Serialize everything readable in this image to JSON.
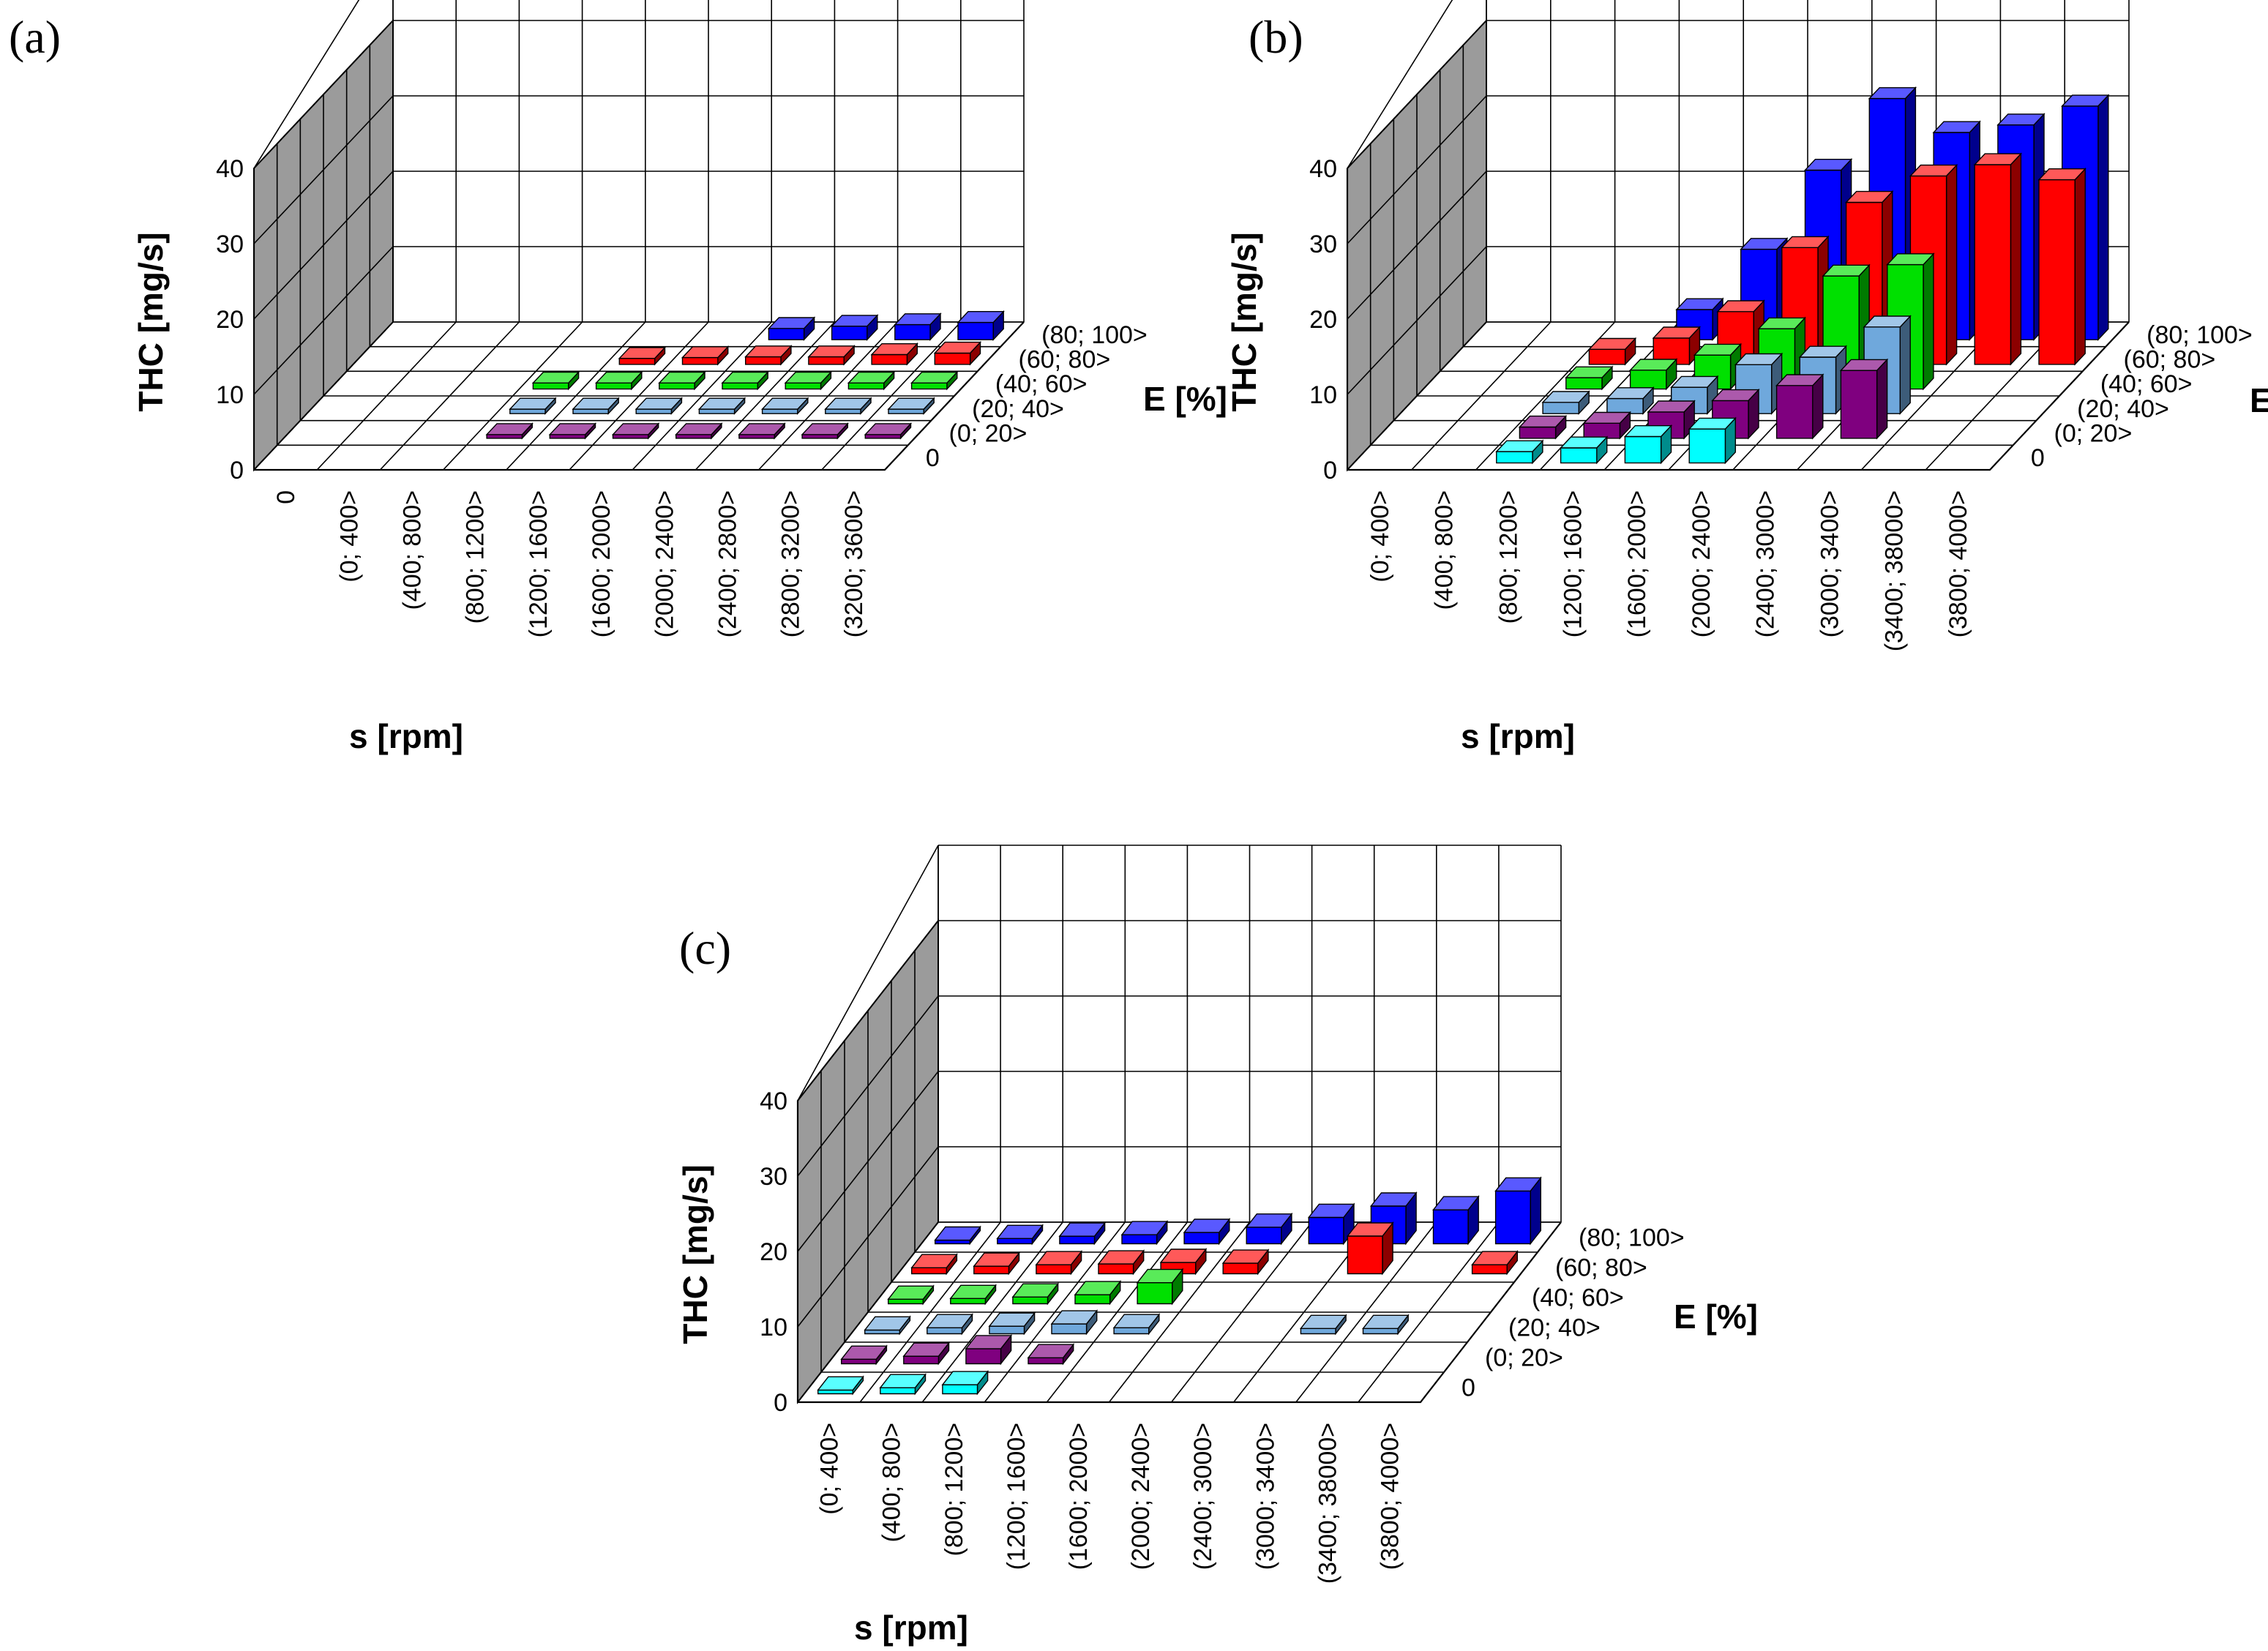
{
  "chart_data": [
    {
      "type": "bar3d",
      "panel_label": "(a)",
      "ylabel": "THC [mg/s]",
      "xlabel": "s [rpm]",
      "zlabel": "E [%]",
      "ylim": [
        0,
        40
      ],
      "yticks": [
        "0",
        "10",
        "20",
        "30",
        "40"
      ],
      "x_categories": [
        "0",
        "(0; 400>",
        "(400; 800>",
        "(800; 1200>",
        "(1200; 1600>",
        "(1600; 2000>",
        "(2000; 2400>",
        "(2400; 2800>",
        "(2800; 3200>",
        "(3200; 3600>"
      ],
      "z_categories": [
        "0",
        "(0; 20>",
        "(20; 40>",
        "(40; 60>",
        "(60; 80>",
        "(80; 100>"
      ],
      "series": [
        {
          "name": "0",
          "color": "#00ffff",
          "values": [
            null,
            null,
            null,
            null,
            null,
            null,
            null,
            null,
            null,
            null
          ]
        },
        {
          "name": "(0; 20>",
          "color": "#7f007f",
          "values": [
            null,
            null,
            null,
            0.5,
            0.5,
            0.5,
            0.5,
            0.5,
            0.5,
            0.5
          ]
        },
        {
          "name": "(20; 40>",
          "color": "#6fa8dc",
          "values": [
            null,
            null,
            null,
            0.6,
            0.6,
            0.6,
            0.6,
            0.6,
            0.6,
            0.6
          ]
        },
        {
          "name": "(40; 60>",
          "color": "#00e000",
          "values": [
            null,
            null,
            null,
            0.8,
            0.8,
            0.8,
            0.8,
            0.8,
            0.8,
            0.8
          ]
        },
        {
          "name": "(60; 80>",
          "color": "#ff0000",
          "values": [
            null,
            null,
            null,
            null,
            0.8,
            0.9,
            1.0,
            1.0,
            1.3,
            1.5
          ]
        },
        {
          "name": "(80; 100>",
          "color": "#0000ff",
          "values": [
            null,
            null,
            null,
            null,
            null,
            null,
            1.5,
            1.8,
            2.0,
            2.3
          ]
        }
      ]
    },
    {
      "type": "bar3d",
      "panel_label": "(b)",
      "ylabel": "THC [mg/s]",
      "xlabel": "s [rpm]",
      "zlabel": "E [%]",
      "ylim": [
        0,
        40
      ],
      "yticks": [
        "0",
        "10",
        "20",
        "30",
        "40"
      ],
      "x_categories": [
        "(0; 400>",
        "(400; 800>",
        "(800; 1200>",
        "(1200; 1600>",
        "(1600; 2000>",
        "(2000; 2400>",
        "(2400; 3000>",
        "(3000; 3400>",
        "(3400; 38000>",
        "(3800; 4000>"
      ],
      "z_categories": [
        "0",
        "(0; 20>",
        "(20; 40>",
        "(40; 60>",
        "(60; 80>",
        "(80; 100>"
      ],
      "series": [
        {
          "name": "0",
          "color": "#00ffff",
          "values": [
            null,
            null,
            1.5,
            2.0,
            3.5,
            4.5,
            null,
            null,
            null,
            null
          ]
        },
        {
          "name": "(0; 20>",
          "color": "#7f007f",
          "values": [
            null,
            null,
            1.5,
            2.0,
            3.5,
            5.0,
            7.0,
            9.0,
            null,
            null
          ]
        },
        {
          "name": "(20; 40>",
          "color": "#6fa8dc",
          "values": [
            null,
            null,
            1.5,
            2.0,
            3.5,
            6.5,
            7.5,
            11.5,
            null,
            null
          ]
        },
        {
          "name": "(40; 60>",
          "color": "#00e000",
          "values": [
            null,
            null,
            1.5,
            2.5,
            4.5,
            8.0,
            15.0,
            16.5,
            null,
            null
          ]
        },
        {
          "name": "(60; 80>",
          "color": "#ff0000",
          "values": [
            null,
            null,
            2.0,
            3.5,
            7.0,
            15.5,
            21.5,
            25.0,
            26.5,
            24.5
          ]
        },
        {
          "name": "(80; 100>",
          "color": "#0000ff",
          "values": [
            null,
            null,
            null,
            4.0,
            12.0,
            22.5,
            32.0,
            27.5,
            28.5,
            31.0
          ]
        }
      ]
    },
    {
      "type": "bar3d",
      "panel_label": "(c)",
      "ylabel": "THC [mg/s]",
      "xlabel": "s [rpm]",
      "zlabel": "E [%]",
      "ylim": [
        0,
        40
      ],
      "yticks": [
        "0",
        "10",
        "20",
        "30",
        "40"
      ],
      "x_categories": [
        "(0; 400>",
        "(400; 800>",
        "(800; 1200>",
        "(1200; 1600>",
        "(1600; 2000>",
        "(2000; 2400>",
        "(2400; 3000>",
        "(3000; 3400>",
        "(3400; 38000>",
        "(3800; 4000>"
      ],
      "z_categories": [
        "0",
        "(0; 20>",
        "(20; 40>",
        "(40; 60>",
        "(60; 80>",
        "(80; 100>"
      ],
      "series": [
        {
          "name": "0",
          "color": "#00ffff",
          "values": [
            0.5,
            0.8,
            1.2,
            null,
            null,
            null,
            null,
            null,
            null,
            null
          ]
        },
        {
          "name": "(0; 20>",
          "color": "#7f007f",
          "values": [
            0.6,
            1.0,
            2.0,
            0.8,
            null,
            null,
            null,
            null,
            null,
            null
          ]
        },
        {
          "name": "(20; 40>",
          "color": "#6fa8dc",
          "values": [
            0.5,
            0.8,
            1.0,
            1.3,
            0.8,
            null,
            null,
            0.7,
            0.7,
            null
          ]
        },
        {
          "name": "(40; 60>",
          "color": "#00e000",
          "values": [
            0.6,
            0.7,
            0.9,
            1.2,
            2.8,
            null,
            null,
            null,
            null,
            null
          ]
        },
        {
          "name": "(60; 80>",
          "color": "#ff0000",
          "values": [
            0.8,
            1.0,
            1.2,
            1.3,
            1.5,
            1.4,
            null,
            5.0,
            null,
            1.2
          ]
        },
        {
          "name": "(80; 100>",
          "color": "#0000ff",
          "values": [
            0.3,
            0.7,
            1.0,
            1.2,
            1.5,
            2.2,
            3.5,
            5.0,
            4.5,
            7.0
          ]
        }
      ]
    }
  ]
}
